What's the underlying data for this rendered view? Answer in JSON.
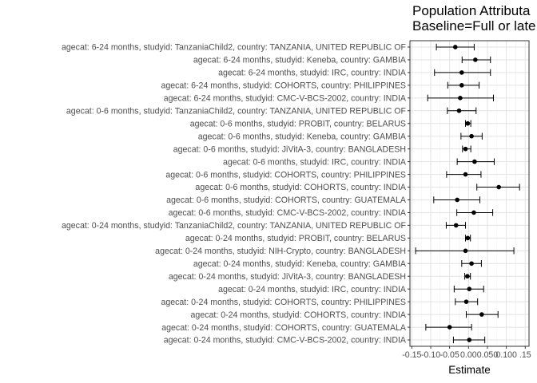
{
  "chart_data": {
    "type": "scatter",
    "subtype": "point-range (dot with horizontal error bars)",
    "title_lines": [
      "Population Attributa",
      "Baseline=Full or late"
    ],
    "xlabel": "Estimate",
    "ylabel": "",
    "xlim": [
      -0.155,
      0.16
    ],
    "x_ticks": [
      -0.15,
      -0.1,
      -0.05,
      0.0,
      0.05,
      0.1,
      0.15
    ],
    "x_tick_labels": [
      "-0.15",
      "-0.10",
      "-0.05",
      "0.00",
      "0.050",
      "0.100",
      ".15"
    ],
    "grid": true,
    "theme": "bw",
    "point_color": "#000000",
    "rows": [
      {
        "label": "agecat: 6-24 months, studyid: TanzaniaChild2, country: TANZANIA, UNITED REPUBLIC OF",
        "estimate": -0.035,
        "lower": -0.085,
        "upper": 0.015
      },
      {
        "label": "agecat: 6-24 months, studyid: Keneba, country: GAMBIA",
        "estimate": 0.018,
        "lower": -0.017,
        "upper": 0.058
      },
      {
        "label": "agecat: 6-24 months, studyid: IRC, country: INDIA",
        "estimate": -0.018,
        "lower": -0.09,
        "upper": 0.058
      },
      {
        "label": "agecat: 6-24 months, studyid: COHORTS, country: PHILIPPINES",
        "estimate": -0.018,
        "lower": -0.055,
        "upper": 0.028
      },
      {
        "label": "agecat: 6-24 months, studyid: CMC-V-BCS-2002, country: INDIA",
        "estimate": -0.022,
        "lower": -0.108,
        "upper": 0.066
      },
      {
        "label": "agecat: 0-6 months, studyid: TanzaniaChild2, country: TANZANIA, UNITED REPUBLIC OF",
        "estimate": -0.025,
        "lower": -0.056,
        "upper": 0.02
      },
      {
        "label": "agecat: 0-6 months, studyid: PROBIT, country: BELARUS",
        "estimate": -0.002,
        "lower": -0.008,
        "upper": 0.006
      },
      {
        "label": "agecat: 0-6 months, studyid: Keneba, country: GAMBIA",
        "estimate": 0.008,
        "lower": -0.02,
        "upper": 0.036
      },
      {
        "label": "agecat: 0-6 months, studyid: JiVitA-3, country: BANGLADESH",
        "estimate": -0.008,
        "lower": -0.016,
        "upper": 0.006
      },
      {
        "label": "agecat: 0-6 months, studyid: IRC, country: INDIA",
        "estimate": 0.016,
        "lower": -0.03,
        "upper": 0.068
      },
      {
        "label": "agecat: 0-6 months, studyid: COHORTS, country: PHILIPPINES",
        "estimate": -0.008,
        "lower": -0.058,
        "upper": 0.033
      },
      {
        "label": "agecat: 0-6 months, studyid: COHORTS, country: INDIA",
        "estimate": 0.08,
        "lower": 0.022,
        "upper": 0.135
      },
      {
        "label": "agecat: 0-6 months, studyid: COHORTS, country: GUATEMALA",
        "estimate": -0.03,
        "lower": -0.092,
        "upper": 0.03
      },
      {
        "label": "agecat: 0-6 months, studyid: CMC-V-BCS-2002, country: INDIA",
        "estimate": 0.014,
        "lower": -0.031,
        "upper": 0.064
      },
      {
        "label": "agecat: 0-24 months, studyid: TanzaniaChild2, country: TANZANIA, UNITED REPUBLIC OF",
        "estimate": -0.033,
        "lower": -0.059,
        "upper": -0.008
      },
      {
        "label": "agecat: 0-24 months, studyid: PROBIT, country: BELARUS",
        "estimate": -0.002,
        "lower": -0.008,
        "upper": 0.005
      },
      {
        "label": "agecat: 0-24 months, studyid: NIH-Crypto, country: BANGLADESH",
        "estimate": -0.008,
        "lower": -0.14,
        "upper": 0.12
      },
      {
        "label": "agecat: 0-24 months, studyid: Keneba, country: GAMBIA",
        "estimate": 0.008,
        "lower": -0.018,
        "upper": 0.034
      },
      {
        "label": "agecat: 0-24 months, studyid: JiVitA-3, country: BANGLADESH",
        "estimate": -0.003,
        "lower": -0.01,
        "upper": 0.005
      },
      {
        "label": "agecat: 0-24 months, studyid: IRC, country: INDIA",
        "estimate": 0.002,
        "lower": -0.038,
        "upper": 0.04
      },
      {
        "label": "agecat: 0-24 months, studyid: COHORTS, country: PHILIPPINES",
        "estimate": -0.006,
        "lower": -0.035,
        "upper": 0.024
      },
      {
        "label": "agecat: 0-24 months, studyid: COHORTS, country: INDIA",
        "estimate": 0.035,
        "lower": -0.006,
        "upper": 0.078
      },
      {
        "label": "agecat: 0-24 months, studyid: COHORTS, country: GUATEMALA",
        "estimate": -0.05,
        "lower": -0.113,
        "upper": 0.008
      },
      {
        "label": "agecat: 0-24 months, studyid: CMC-V-BCS-2002, country: INDIA",
        "estimate": 0.002,
        "lower": -0.04,
        "upper": 0.043
      }
    ]
  }
}
